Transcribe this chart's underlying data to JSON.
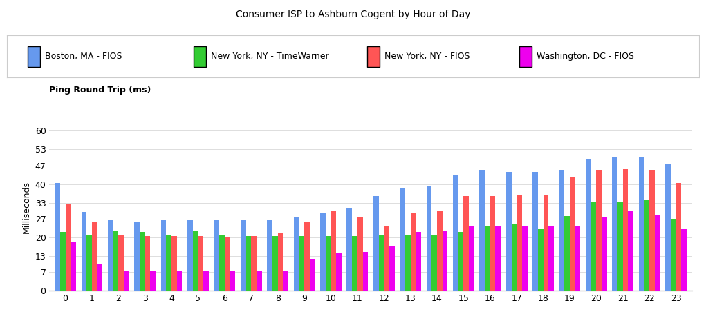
{
  "title": "Consumer ISP to Ashburn Cogent by Hour of Day",
  "ylabel": "Milliseconds",
  "ping_label": "Ping Round Trip (ms)",
  "yticks": [
    0,
    7,
    13,
    20,
    27,
    33,
    40,
    47,
    53,
    60
  ],
  "ylim": [
    0,
    63
  ],
  "hours": [
    0,
    1,
    2,
    3,
    4,
    5,
    6,
    7,
    8,
    9,
    10,
    11,
    12,
    13,
    14,
    15,
    16,
    17,
    18,
    19,
    20,
    21,
    22,
    23
  ],
  "series": [
    {
      "label": "Boston, MA - FIOS",
      "color": "#6699EE",
      "values": [
        40.5,
        29.5,
        26.5,
        26.0,
        26.5,
        26.5,
        26.5,
        26.5,
        26.5,
        27.5,
        29.0,
        31.0,
        35.5,
        38.5,
        39.5,
        43.5,
        45.0,
        44.5,
        44.5,
        45.0,
        49.5,
        50.0,
        50.0,
        47.5
      ]
    },
    {
      "label": "New York, NY - TimeWarner",
      "color": "#33CC33",
      "values": [
        22.0,
        21.0,
        22.5,
        22.0,
        21.0,
        22.5,
        21.0,
        20.5,
        20.5,
        20.5,
        20.5,
        20.5,
        21.0,
        21.0,
        21.0,
        22.0,
        24.5,
        25.0,
        23.0,
        28.0,
        33.5,
        33.5,
        34.0,
        27.0
      ]
    },
    {
      "label": "New York, NY - FIOS",
      "color": "#FF5555",
      "values": [
        32.5,
        26.0,
        21.0,
        20.5,
        20.5,
        20.5,
        20.0,
        20.5,
        21.5,
        26.0,
        30.0,
        27.5,
        24.5,
        29.0,
        30.0,
        35.5,
        35.5,
        36.0,
        36.0,
        42.5,
        45.0,
        45.5,
        45.0,
        40.5
      ]
    },
    {
      "label": "Washington, DC - FIOS",
      "color": "#EE00EE",
      "values": [
        18.5,
        10.0,
        7.5,
        7.5,
        7.5,
        7.5,
        7.5,
        7.5,
        7.5,
        12.0,
        14.0,
        14.5,
        17.0,
        22.0,
        22.5,
        24.0,
        24.5,
        24.5,
        24.0,
        24.5,
        27.5,
        30.0,
        28.5,
        23.0
      ]
    }
  ],
  "bar_width": 0.2,
  "bg_color": "#FFFFFF",
  "legend_edge_color": "#CCCCCC",
  "grid_color": "#DDDDDD"
}
